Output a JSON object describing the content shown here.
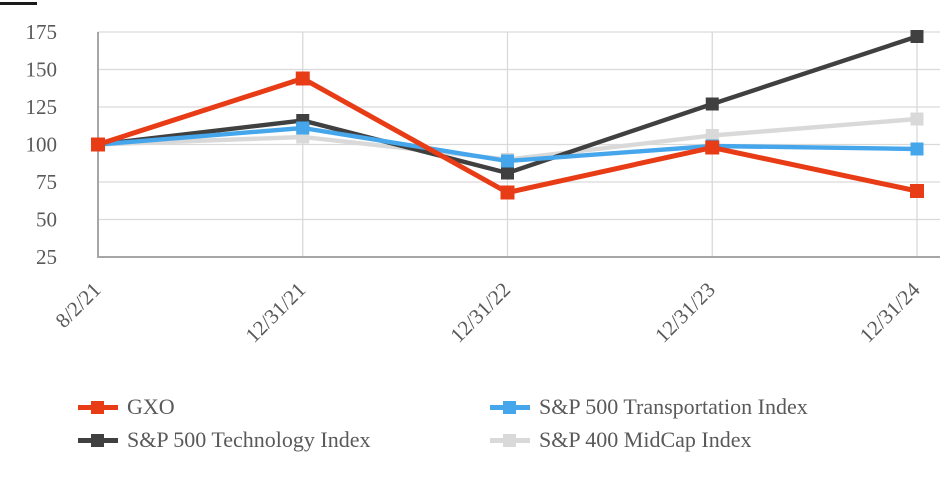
{
  "page": {
    "background": "#ffffff",
    "artifact_color": "#1a1a1a"
  },
  "chart_data": {
    "type": "line",
    "title": "",
    "xlabel": "",
    "ylabel": "",
    "categories": [
      "8/2/21",
      "12/31/21",
      "12/31/22",
      "12/31/23",
      "12/31/24"
    ],
    "series": [
      {
        "name": "GXO",
        "color": "#E83C17",
        "marker": "square",
        "values": [
          100,
          144,
          68,
          98,
          69
        ]
      },
      {
        "name": "S&P 500 Transportation Index",
        "color": "#45A6EC",
        "marker": "square",
        "values": [
          100,
          111,
          89,
          99,
          97
        ]
      },
      {
        "name": "S&P 500 Technology Index",
        "color": "#404040",
        "marker": "square",
        "values": [
          100,
          116,
          81,
          127,
          172
        ]
      },
      {
        "name": "S&P 400 MidCap Index",
        "color": "#D9D9D9",
        "marker": "square",
        "values": [
          100,
          105,
          90,
          106,
          117
        ]
      }
    ],
    "ylim": [
      25,
      175
    ],
    "yticks": [
      25,
      50,
      75,
      100,
      125,
      150,
      175
    ],
    "grid": true,
    "legend_position": "bottom",
    "tick_label_color": "#595959",
    "gridline_color": "#D9D9D9",
    "axis_color": "#A6A6A6"
  }
}
